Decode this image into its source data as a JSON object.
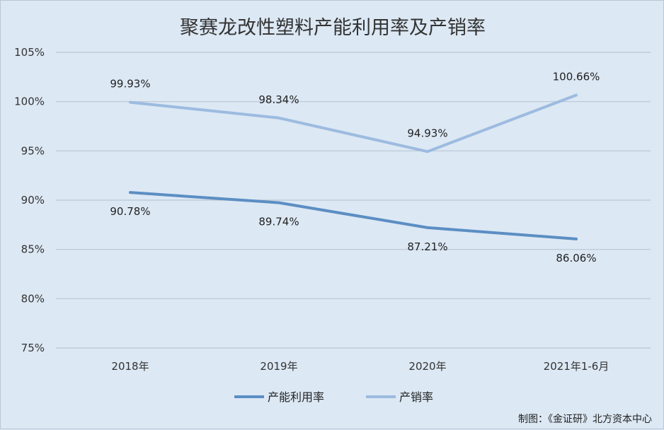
{
  "chart_data": {
    "type": "line",
    "title": "聚赛龙改性塑料产能利用率及产销率",
    "categories": [
      "2018年",
      "2019年",
      "2020年",
      "2021年1-6月"
    ],
    "series": [
      {
        "name": "产能利用率",
        "values": [
          90.78,
          89.74,
          87.21,
          86.06
        ],
        "labels": [
          "90.78%",
          "89.74%",
          "87.21%",
          "86.06%"
        ],
        "label_position": "below",
        "color": "#5b8ec3"
      },
      {
        "name": "产销率",
        "values": [
          99.93,
          98.34,
          94.93,
          100.66
        ],
        "labels": [
          "99.93%",
          "98.34%",
          "94.93%",
          "100.66%"
        ],
        "label_position": "above",
        "color": "#9dbbe0"
      }
    ],
    "ylim": [
      75,
      105
    ],
    "yticks": [
      "75%",
      "80%",
      "85%",
      "90%",
      "95%",
      "100%",
      "105%"
    ],
    "xlabel": "",
    "ylabel": "",
    "grid": true,
    "legend": "bottom",
    "gridline_color": "#b9c6d4"
  },
  "footer": {
    "credit": "制图：《金证研》北方资本中心"
  }
}
